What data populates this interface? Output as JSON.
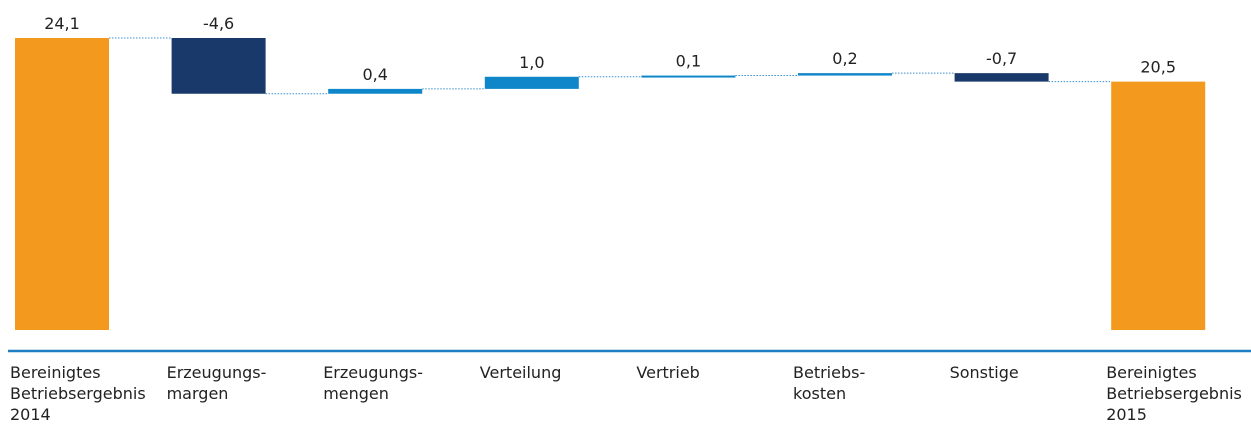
{
  "chart_data": {
    "type": "waterfall",
    "categories": [
      [
        "Bereinigtes",
        "Betriebsergebnis",
        "2014"
      ],
      [
        "Erzeugungs-",
        "margen"
      ],
      [
        "Erzeugungs-",
        "mengen"
      ],
      [
        "Verteilung"
      ],
      [
        "Vertrieb"
      ],
      [
        "Betriebs-",
        "kosten"
      ],
      [
        "Sonstige"
      ],
      [
        "Bereinigtes",
        "Betriebsergebnis",
        "2015"
      ]
    ],
    "values": [
      24.1,
      -4.6,
      0.4,
      1.0,
      0.1,
      0.2,
      -0.7,
      20.5
    ],
    "value_labels": [
      "24,1",
      "-4,6",
      "0,4",
      "1,0",
      "0,1",
      "0,2",
      "-0,7",
      "20,5"
    ],
    "colors": {
      "total": "#f39a1e",
      "increase": "#0f86c9",
      "decrease": "#1a396b"
    }
  }
}
